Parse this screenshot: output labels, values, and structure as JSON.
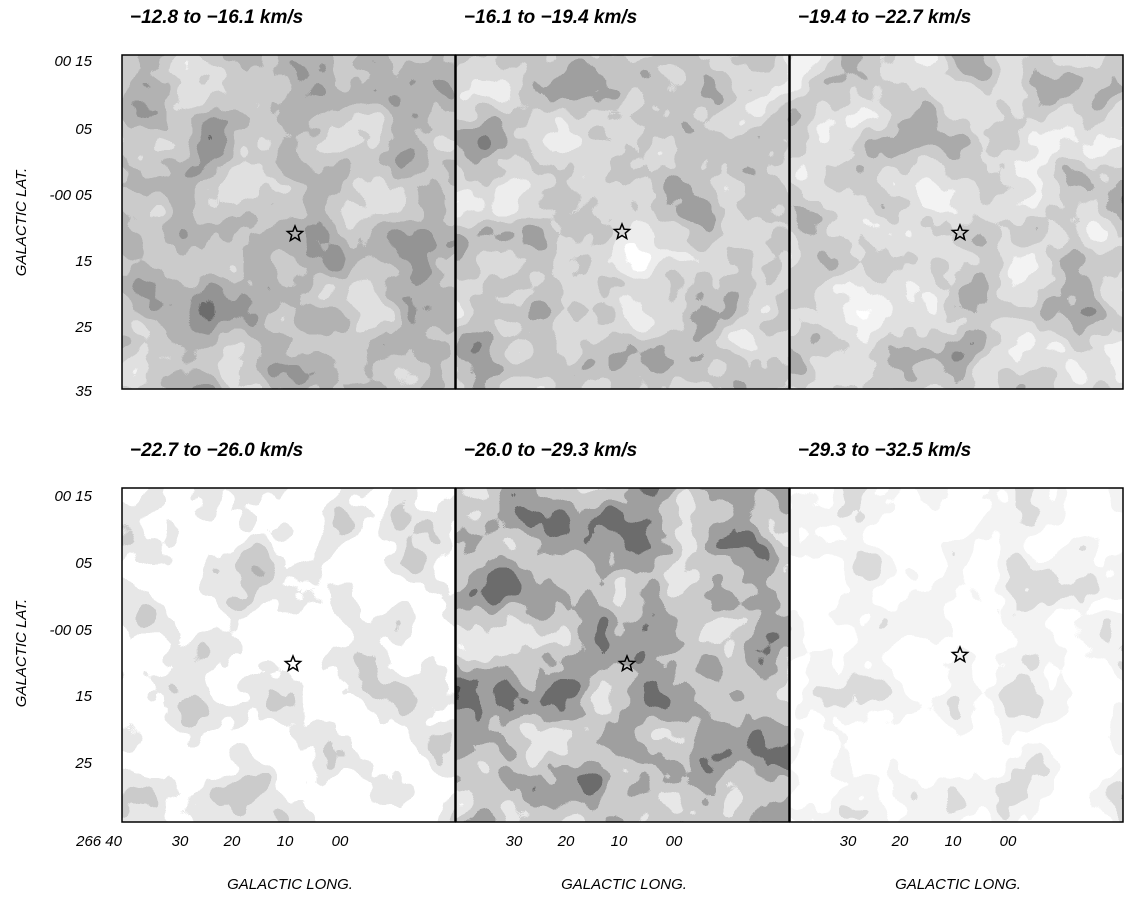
{
  "panels": [
    {
      "title": "−12.8 to −16.1 km/s"
    },
    {
      "title": "−16.1 to −19.4 km/s"
    },
    {
      "title": "−19.4 to −22.7 km/s"
    },
    {
      "title": "−22.7 to −26.0 km/s"
    },
    {
      "title": "−26.0 to −29.3 km/s"
    },
    {
      "title": "−29.3 to −32.5 km/s"
    }
  ],
  "y_label": "GALACTIC LAT.",
  "x_label": "GALACTIC LONG.",
  "y_ticks_top": [
    "00 15",
    "05",
    "-00 05",
    "15",
    "25",
    "35"
  ],
  "y_ticks_bottom": [
    "00 15",
    "05",
    "-00 05",
    "15",
    "25"
  ],
  "x_ticks": [
    "266 40",
    "30",
    "20",
    "10",
    "00"
  ]
}
